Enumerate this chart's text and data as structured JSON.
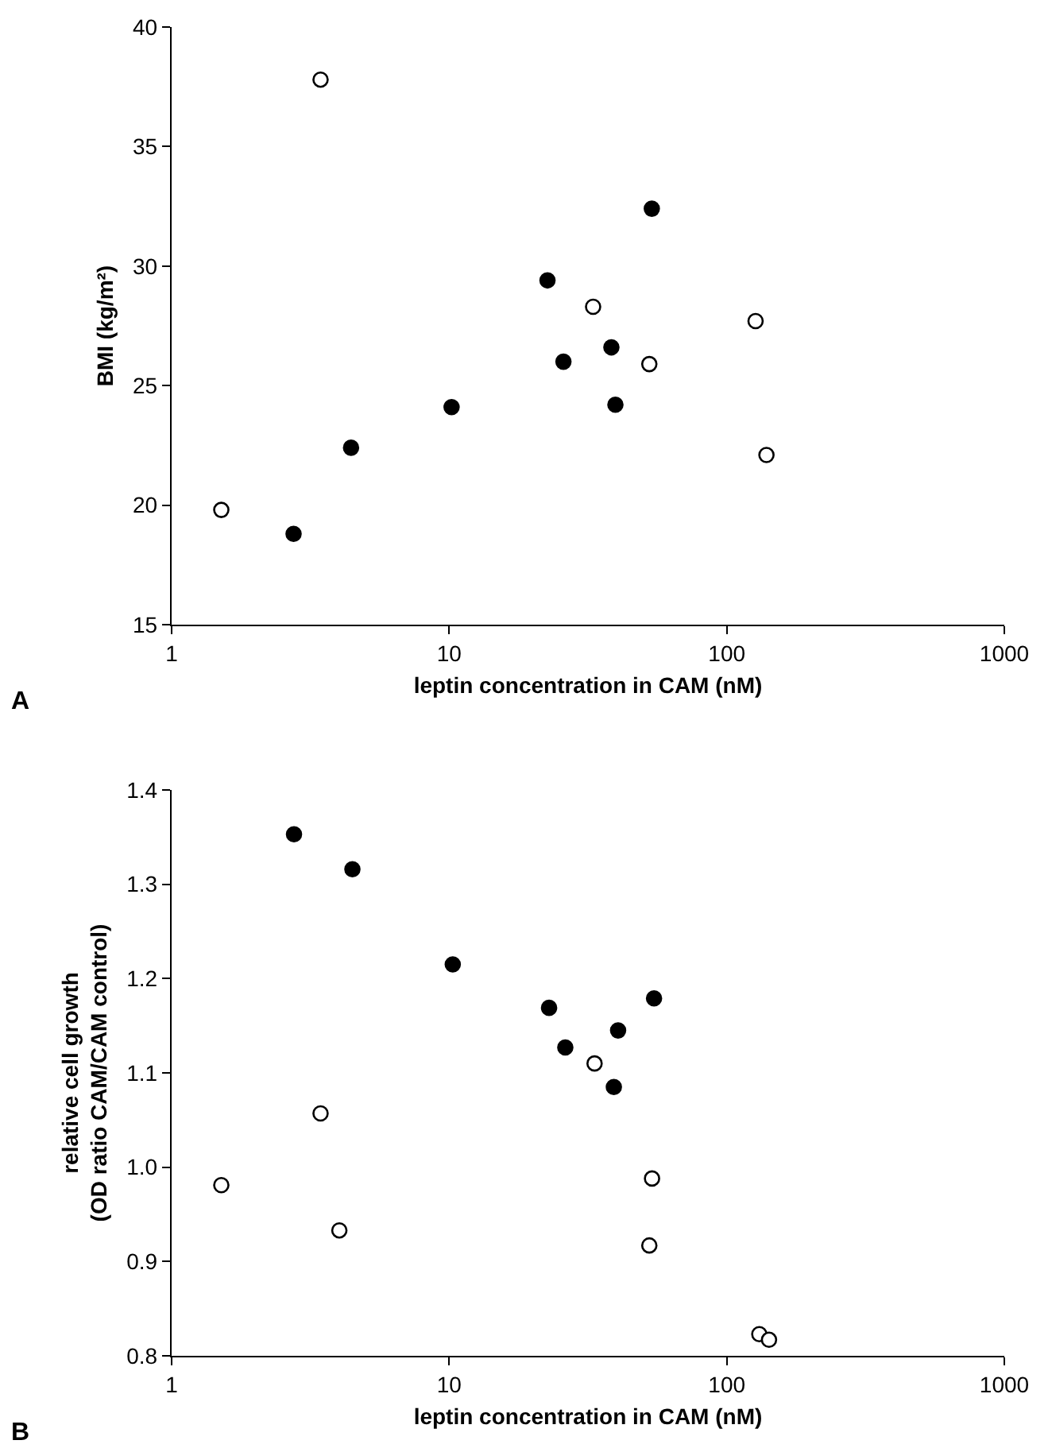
{
  "chart_data": [
    {
      "type": "scatter",
      "xlabel": "leptin concentration in CAM (nM)",
      "ylabel": "BMI (kg/m²)",
      "annotations": [
        "A"
      ],
      "log": "x",
      "xlim": [
        1,
        1000
      ],
      "xticks": [
        1,
        10,
        100,
        1000
      ],
      "ylim": [
        15,
        40
      ],
      "yticks": [
        15,
        20,
        25,
        30,
        35,
        40
      ],
      "marker": "circle",
      "series": [
        {
          "color": "#000000",
          "x": [
            2.75,
            4.43,
            10.2,
            22.6,
            25.8,
            38.4,
            39.7,
            53.7
          ],
          "values": [
            18.8,
            22.4,
            24.1,
            29.4,
            26.0,
            26.6,
            24.2,
            32.4
          ]
        },
        {
          "color": "#ffffff",
          "x": [
            1.51,
            3.44,
            33.0,
            52.6,
            127,
            139
          ],
          "values": [
            19.8,
            37.8,
            28.3,
            25.9,
            27.7,
            22.1
          ]
        }
      ]
    },
    {
      "type": "scatter",
      "xlabel": "leptin concentration in CAM (nM)",
      "ylabel": "relative cell growth\n(OD ratio CAM/CAM control)",
      "annotations": [
        "B"
      ],
      "log": "x",
      "xlim": [
        1,
        1000
      ],
      "xticks": [
        1,
        10,
        100,
        1000
      ],
      "ylim": [
        0.8,
        1.4
      ],
      "yticks": [
        {
          "value": 0.8,
          "label": "0.8"
        },
        {
          "value": 0.9,
          "label": "0.9"
        },
        {
          "value": 1.0,
          "label": "1.0"
        },
        {
          "value": 1.1,
          "label": "1.1"
        },
        {
          "value": 1.2,
          "label": "1.2"
        },
        {
          "value": 1.3,
          "label": "1.3"
        },
        {
          "value": 1.4,
          "label": "1.4"
        }
      ],
      "marker": "circle",
      "series": [
        {
          "color": "#000000",
          "x": [
            2.76,
            4.48,
            10.3,
            22.9,
            26.2,
            40.6,
            39.2,
            54.7
          ],
          "values": [
            1.353,
            1.316,
            1.215,
            1.169,
            1.127,
            1.145,
            1.085,
            1.179
          ]
        },
        {
          "color": "#ffffff",
          "x": [
            1.51,
            3.44,
            4.02,
            33.4,
            53.8,
            52.6,
            131,
            142
          ],
          "values": [
            0.981,
            1.057,
            0.933,
            1.11,
            0.988,
            0.917,
            0.823,
            0.817
          ]
        }
      ]
    }
  ]
}
